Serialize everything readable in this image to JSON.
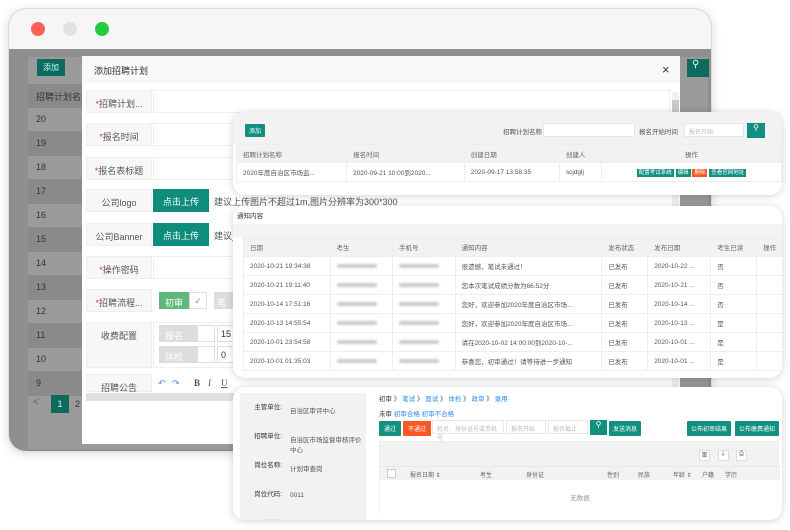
{
  "background_window": {
    "add_label": "添加",
    "column_header": "招聘计划名称",
    "row_ids": [
      "20",
      "19",
      "18",
      "17",
      "16",
      "15",
      "14",
      "13",
      "12",
      "11",
      "10",
      "9"
    ],
    "pagination": {
      "prev": "<",
      "pages": [
        "1",
        "2"
      ],
      "current": "1"
    }
  },
  "modal": {
    "title": "添加招聘计划",
    "close": "×",
    "fields": [
      {
        "label": "招聘计划...",
        "required": true
      },
      {
        "label": "报名时间",
        "required": true
      },
      {
        "label": "报名表标题",
        "required": true
      }
    ],
    "logo_label": "公司logo",
    "banner_label": "公司Banner",
    "upload_label": "点击上传",
    "logo_hint": "建议上传图片不超过1m,图片分辨率为300*300",
    "banner_hint": "建议_",
    "password_label": "操作密码",
    "process_label": "招聘流程...",
    "process_step": "初审",
    "process_step2": "笔",
    "fee_label": "收费配置",
    "fees": [
      {
        "name": "报名费",
        "value": "15"
      },
      {
        "name": "体检费",
        "value": "0"
      }
    ],
    "notice_label": "招聘公告",
    "editor_tools": [
      "↶",
      "↷",
      "B",
      "I",
      "U"
    ]
  },
  "plan_card": {
    "add_label": "添加",
    "search_name_label": "招聘计划名称",
    "search_time_label": "报名开始时间",
    "search_time_placeholder": "报名开始",
    "columns": [
      "招聘计划名称",
      "报名时间",
      "创建日期",
      "创建人",
      "操作"
    ],
    "rows": [
      {
        "name": "2020年度自治区市场监...",
        "time": "2020-09-21 10:00到2020...",
        "created": "2020-09-17 13:58:35",
        "creator": "scjdglj"
      }
    ],
    "actions": [
      {
        "label": "配置考试系统",
        "color": "#11907f"
      },
      {
        "label": "编辑",
        "color": "#11907f"
      },
      {
        "label": "删除",
        "color": "#ff5722"
      },
      {
        "label": "查看官网地址",
        "color": "#11907f"
      }
    ]
  },
  "notice_card": {
    "title": "通知内容",
    "columns": [
      "日期",
      "考生",
      "手机号",
      "通知内容",
      "发布状态",
      "发布日期",
      "考生已读",
      "操作"
    ],
    "rows": [
      {
        "date": "2020-10-21 19:34:38",
        "content": "很遗憾，笔试未通过！",
        "status": "已发布",
        "pub": "2020-10-22 ...",
        "read": "否"
      },
      {
        "date": "2020-10-21 19:11:40",
        "content": "您本次笔试成绩分数为66.52分",
        "status": "已发布",
        "pub": "2020-10-21 ...",
        "read": "否"
      },
      {
        "date": "2020-10-14 17:51:16",
        "content": "您好，欢迎参加2020年度自治区市场...",
        "status": "已发布",
        "pub": "2020-10-14 ...",
        "read": "否"
      },
      {
        "date": "2020-10-13 14:55:54",
        "content": "您好，欢迎参加2020年度自治区市场...",
        "status": "已发布",
        "pub": "2020-10-13 ...",
        "read": "是"
      },
      {
        "date": "2020-10-01 23:54:58",
        "content": "请在2020-10-02 14:00:00到2020-10-...",
        "status": "已发布",
        "pub": "2020-10-01 ...",
        "read": "是"
      },
      {
        "date": "2020-10-01 01:35:03",
        "content": "恭喜您，初审通过！请等待进一步通知",
        "status": "已发布",
        "pub": "2020-10-01 ...",
        "read": "是"
      }
    ]
  },
  "review_card": {
    "info": [
      {
        "label": "主管单位:",
        "value": "自治区审评中心"
      },
      {
        "label": "招聘单位:",
        "value": "自治区市场监督审核评价中心"
      },
      {
        "label": "岗位名称:",
        "value": "计划审查岗"
      },
      {
        "label": "岗位代码:",
        "value": "0011"
      },
      {
        "label": "岗位类",
        "value": ""
      }
    ],
    "steps": [
      "初审",
      "笔试",
      "面试",
      "体检",
      "政审",
      "录用"
    ],
    "filter_label": "未审",
    "filters": [
      "初审合格",
      "初审不合格"
    ],
    "pass": "通过",
    "fail": "不通过",
    "search_placeholder": "姓名、身份证号或手机号",
    "start_placeholder": "报名开始",
    "end_placeholder": "报名截止",
    "send_message": "发送消息",
    "publish_result": "公布初审结果",
    "publish_notice": "公布缴费通知",
    "columns": [
      "报名日期 ⇕",
      "考生",
      "身份证",
      "性别",
      "民族",
      "年龄 ⇕",
      "户籍",
      "学历"
    ],
    "empty": "无数据"
  },
  "colors": {
    "accent": "#11907f",
    "danger": "#ff5722",
    "link": "#2d8cf0"
  }
}
